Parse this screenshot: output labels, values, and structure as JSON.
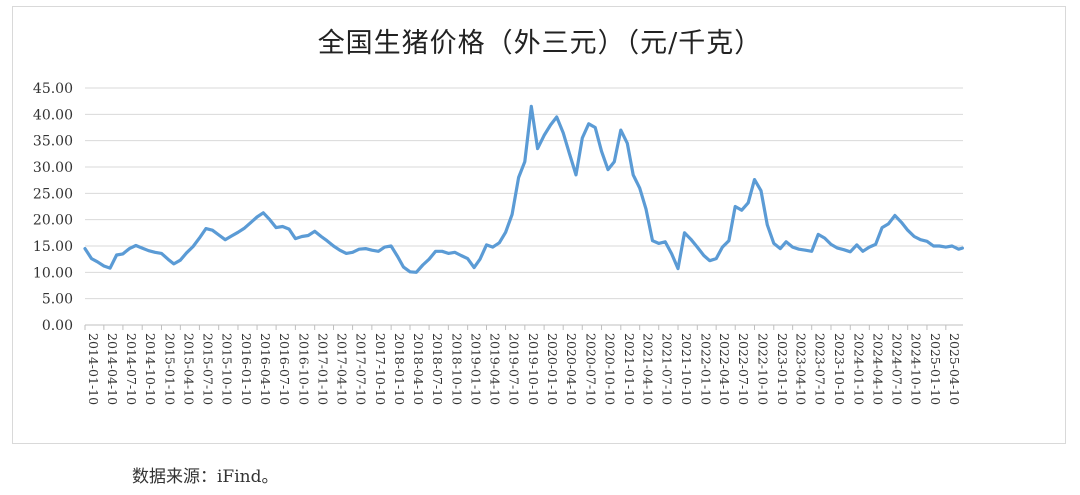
{
  "chart_data": {
    "type": "line",
    "title": "全国生猪价格（外三元）（元/千克）",
    "xlabel": "",
    "ylabel": "",
    "ylim": [
      0,
      45
    ],
    "y_ticks": [
      "0.00",
      "5.00",
      "10.00",
      "15.00",
      "20.00",
      "25.00",
      "30.00",
      "35.00",
      "40.00",
      "45.00"
    ],
    "x_tick_labels": [
      "2014-01-10",
      "2014-04-10",
      "2014-07-10",
      "2014-10-10",
      "2015-01-10",
      "2015-04-10",
      "2015-07-10",
      "2015-10-10",
      "2016-01-10",
      "2016-04-10",
      "2016-07-10",
      "2016-10-10",
      "2017-01-10",
      "2017-04-10",
      "2017-07-10",
      "2017-10-10",
      "2018-01-10",
      "2018-04-10",
      "2018-07-10",
      "2018-10-10",
      "2019-01-10",
      "2019-04-10",
      "2019-07-10",
      "2019-10-10",
      "2020-01-10",
      "2020-04-10",
      "2020-07-10",
      "2020-10-10",
      "2021-01-10",
      "2021-04-10",
      "2021-07-10",
      "2021-10-10",
      "2022-01-10",
      "2022-04-10",
      "2022-07-10",
      "2022-10-10",
      "2023-01-10",
      "2023-04-10",
      "2023-07-10",
      "2023-10-10",
      "2024-01-10",
      "2024-04-10",
      "2024-07-10",
      "2024-10-10",
      "2025-01-10",
      "2025-04-10"
    ],
    "grid": true,
    "line_color": "#5b9bd5",
    "series": [
      {
        "points": [
          [
            "2014-01-10",
            14.5
          ],
          [
            "2014-02-10",
            12.6
          ],
          [
            "2014-03-10",
            12.0
          ],
          [
            "2014-04-10",
            11.2
          ],
          [
            "2014-05-10",
            10.8
          ],
          [
            "2014-06-10",
            13.3
          ],
          [
            "2014-07-10",
            13.5
          ],
          [
            "2014-08-10",
            14.5
          ],
          [
            "2014-09-10",
            15.1
          ],
          [
            "2014-10-10",
            14.6
          ],
          [
            "2014-11-10",
            14.1
          ],
          [
            "2014-12-10",
            13.8
          ],
          [
            "2015-01-10",
            13.6
          ],
          [
            "2015-02-10",
            12.5
          ],
          [
            "2015-03-10",
            11.6
          ],
          [
            "2015-04-10",
            12.3
          ],
          [
            "2015-05-10",
            13.7
          ],
          [
            "2015-06-10",
            14.9
          ],
          [
            "2015-07-10",
            16.5
          ],
          [
            "2015-08-10",
            18.3
          ],
          [
            "2015-09-10",
            18.0
          ],
          [
            "2015-10-10",
            17.1
          ],
          [
            "2015-11-10",
            16.2
          ],
          [
            "2015-12-10",
            16.9
          ],
          [
            "2016-01-10",
            17.6
          ],
          [
            "2016-02-10",
            18.4
          ],
          [
            "2016-03-10",
            19.4
          ],
          [
            "2016-04-10",
            20.5
          ],
          [
            "2016-05-10",
            21.3
          ],
          [
            "2016-06-10",
            20.0
          ],
          [
            "2016-07-10",
            18.5
          ],
          [
            "2016-08-10",
            18.7
          ],
          [
            "2016-09-10",
            18.2
          ],
          [
            "2016-10-10",
            16.4
          ],
          [
            "2016-11-10",
            16.8
          ],
          [
            "2016-12-10",
            17.0
          ],
          [
            "2017-01-10",
            17.8
          ],
          [
            "2017-02-10",
            16.8
          ],
          [
            "2017-03-10",
            16.0
          ],
          [
            "2017-04-10",
            15.0
          ],
          [
            "2017-05-10",
            14.2
          ],
          [
            "2017-06-10",
            13.6
          ],
          [
            "2017-07-10",
            13.8
          ],
          [
            "2017-08-10",
            14.4
          ],
          [
            "2017-09-10",
            14.5
          ],
          [
            "2017-10-10",
            14.2
          ],
          [
            "2017-11-10",
            14.0
          ],
          [
            "2017-12-10",
            14.8
          ],
          [
            "2018-01-10",
            15.0
          ],
          [
            "2018-02-10",
            13.0
          ],
          [
            "2018-03-10",
            11.0
          ],
          [
            "2018-04-10",
            10.1
          ],
          [
            "2018-05-10",
            10.0
          ],
          [
            "2018-06-10",
            11.4
          ],
          [
            "2018-07-10",
            12.5
          ],
          [
            "2018-08-10",
            14.0
          ],
          [
            "2018-09-10",
            14.0
          ],
          [
            "2018-10-10",
            13.6
          ],
          [
            "2018-11-10",
            13.8
          ],
          [
            "2018-12-10",
            13.2
          ],
          [
            "2019-01-10",
            12.6
          ],
          [
            "2019-02-10",
            10.9
          ],
          [
            "2019-03-10",
            12.5
          ],
          [
            "2019-04-10",
            15.2
          ],
          [
            "2019-05-10",
            14.8
          ],
          [
            "2019-06-10",
            15.6
          ],
          [
            "2019-07-10",
            17.6
          ],
          [
            "2019-08-10",
            21.0
          ],
          [
            "2019-09-10",
            28.0
          ],
          [
            "2019-10-10",
            31.0
          ],
          [
            "2019-11-10",
            41.5
          ],
          [
            "2019-12-10",
            33.5
          ],
          [
            "2020-01-10",
            36.0
          ],
          [
            "2020-02-10",
            38.0
          ],
          [
            "2020-03-10",
            39.5
          ],
          [
            "2020-04-10",
            36.5
          ],
          [
            "2020-05-10",
            32.5
          ],
          [
            "2020-06-10",
            28.5
          ],
          [
            "2020-07-10",
            35.5
          ],
          [
            "2020-08-10",
            38.2
          ],
          [
            "2020-09-10",
            37.5
          ],
          [
            "2020-10-10",
            33.0
          ],
          [
            "2020-11-10",
            29.5
          ],
          [
            "2020-12-10",
            31.0
          ],
          [
            "2021-01-10",
            37.0
          ],
          [
            "2021-02-10",
            34.5
          ],
          [
            "2021-03-10",
            28.5
          ],
          [
            "2021-04-10",
            26.0
          ],
          [
            "2021-05-10",
            22.0
          ],
          [
            "2021-06-10",
            16.0
          ],
          [
            "2021-07-10",
            15.5
          ],
          [
            "2021-08-10",
            15.8
          ],
          [
            "2021-09-10",
            13.5
          ],
          [
            "2021-10-10",
            10.7
          ],
          [
            "2021-11-10",
            17.5
          ],
          [
            "2021-12-10",
            16.3
          ],
          [
            "2022-01-10",
            14.8
          ],
          [
            "2022-02-10",
            13.2
          ],
          [
            "2022-03-10",
            12.2
          ],
          [
            "2022-04-10",
            12.6
          ],
          [
            "2022-05-10",
            14.8
          ],
          [
            "2022-06-10",
            16.0
          ],
          [
            "2022-07-10",
            22.5
          ],
          [
            "2022-08-10",
            21.8
          ],
          [
            "2022-09-10",
            23.2
          ],
          [
            "2022-10-10",
            27.6
          ],
          [
            "2022-11-10",
            25.5
          ],
          [
            "2022-12-10",
            19.0
          ],
          [
            "2023-01-10",
            15.5
          ],
          [
            "2023-02-10",
            14.5
          ],
          [
            "2023-03-10",
            15.8
          ],
          [
            "2023-04-10",
            14.8
          ],
          [
            "2023-05-10",
            14.4
          ],
          [
            "2023-06-10",
            14.2
          ],
          [
            "2023-07-10",
            14.0
          ],
          [
            "2023-08-10",
            17.2
          ],
          [
            "2023-09-10",
            16.5
          ],
          [
            "2023-10-10",
            15.3
          ],
          [
            "2023-11-10",
            14.6
          ],
          [
            "2023-12-10",
            14.3
          ],
          [
            "2024-01-10",
            13.9
          ],
          [
            "2024-02-10",
            15.2
          ],
          [
            "2024-03-10",
            14.0
          ],
          [
            "2024-04-10",
            14.8
          ],
          [
            "2024-05-10",
            15.3
          ],
          [
            "2024-06-10",
            18.5
          ],
          [
            "2024-07-10",
            19.2
          ],
          [
            "2024-08-10",
            20.8
          ],
          [
            "2024-09-10",
            19.5
          ],
          [
            "2024-10-10",
            18.0
          ],
          [
            "2024-11-10",
            16.8
          ],
          [
            "2024-12-10",
            16.2
          ],
          [
            "2025-01-10",
            15.9
          ],
          [
            "2025-02-10",
            15.0
          ],
          [
            "2025-03-10",
            15.0
          ],
          [
            "2025-04-10",
            14.8
          ],
          [
            "2025-05-10",
            15.0
          ],
          [
            "2025-06-10",
            14.4
          ],
          [
            "2025-06-28",
            14.6
          ]
        ]
      }
    ]
  },
  "source_note": "数据来源：iFind。"
}
